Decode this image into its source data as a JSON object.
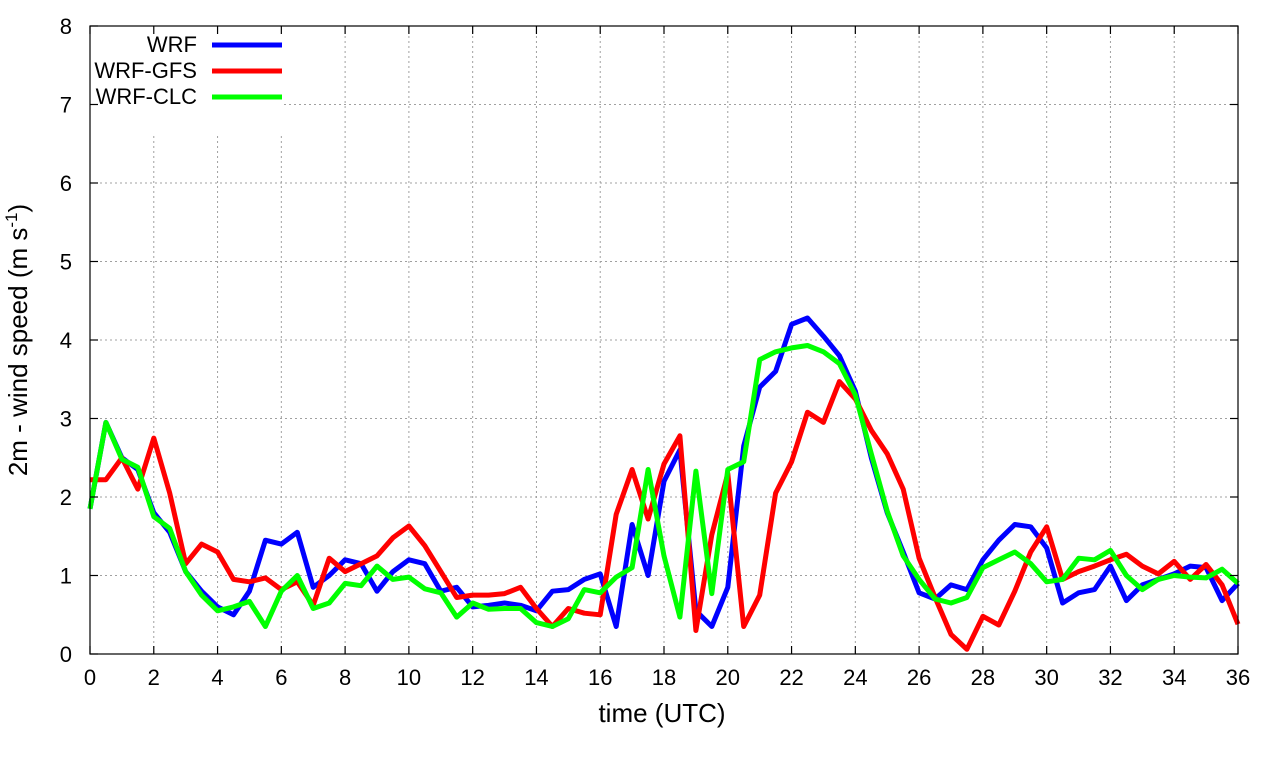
{
  "chart_data": {
    "type": "line",
    "xlabel": "time (UTC)",
    "ylabel_main": "2m - wind speed  (m s",
    "ylabel_exp": "-1",
    "ylabel_close": ")",
    "xlim": [
      0,
      36
    ],
    "ylim": [
      0,
      8
    ],
    "xticks": [
      0,
      2,
      4,
      6,
      8,
      10,
      12,
      14,
      16,
      18,
      20,
      22,
      24,
      26,
      28,
      30,
      32,
      34,
      36
    ],
    "yticks": [
      0,
      1,
      2,
      3,
      4,
      5,
      6,
      7,
      8
    ],
    "grid": true,
    "legend_position": "top-left",
    "series": [
      {
        "name": "WRF",
        "color": "#0000ff",
        "x": [
          0,
          0.5,
          1,
          1.5,
          2,
          2.5,
          3,
          3.5,
          4,
          4.5,
          5,
          5.5,
          6,
          6.5,
          7,
          7.5,
          8,
          8.5,
          9,
          9.5,
          10,
          10.5,
          11,
          11.5,
          12,
          12.5,
          13,
          13.5,
          14,
          14.5,
          15,
          15.5,
          16,
          16.5,
          17,
          17.5,
          18,
          18.5,
          19,
          19.5,
          20,
          20.5,
          21,
          21.5,
          22,
          22.5,
          23,
          23.5,
          24,
          24.5,
          25,
          25.5,
          26,
          26.5,
          27,
          27.5,
          28,
          28.5,
          29,
          29.5,
          30,
          30.5,
          31,
          31.5,
          32,
          32.5,
          33,
          33.5,
          34,
          34.5,
          35,
          35.5,
          36
        ],
        "values": [
          1.85,
          2.95,
          2.5,
          2.35,
          1.8,
          1.55,
          1.05,
          0.8,
          0.6,
          0.5,
          0.8,
          1.45,
          1.4,
          1.55,
          0.85,
          1.0,
          1.2,
          1.15,
          0.8,
          1.05,
          1.2,
          1.15,
          0.8,
          0.85,
          0.6,
          0.62,
          0.65,
          0.62,
          0.55,
          0.8,
          0.82,
          0.95,
          1.02,
          0.35,
          1.65,
          1.0,
          2.2,
          2.6,
          0.55,
          0.35,
          0.85,
          2.65,
          3.4,
          3.6,
          4.2,
          4.28,
          4.05,
          3.8,
          3.35,
          2.5,
          1.8,
          1.3,
          0.78,
          0.7,
          0.88,
          0.82,
          1.2,
          1.45,
          1.65,
          1.62,
          1.35,
          0.65,
          0.78,
          0.82,
          1.12,
          0.68,
          0.88,
          0.95,
          1.02,
          1.12,
          1.1,
          0.68,
          0.9
        ]
      },
      {
        "name": "WRF-GFS",
        "color": "#ff0000",
        "x": [
          0,
          0.5,
          1,
          1.5,
          2,
          2.5,
          3,
          3.5,
          4,
          4.5,
          5,
          5.5,
          6,
          6.5,
          7,
          7.5,
          8,
          8.5,
          9,
          9.5,
          10,
          10.5,
          11,
          11.5,
          12,
          12.5,
          13,
          13.5,
          14,
          14.5,
          15,
          15.5,
          16,
          16.5,
          17,
          17.5,
          18,
          18.5,
          19,
          19.5,
          20,
          20.5,
          21,
          21.5,
          22,
          22.5,
          23,
          23.5,
          24,
          24.5,
          25,
          25.5,
          26,
          26.5,
          27,
          27.5,
          28,
          28.5,
          29,
          29.5,
          30,
          30.5,
          31,
          31.5,
          32,
          32.5,
          33,
          33.5,
          34,
          34.5,
          35,
          35.5,
          36
        ],
        "values": [
          2.22,
          2.22,
          2.5,
          2.1,
          2.75,
          2.05,
          1.15,
          1.4,
          1.3,
          0.95,
          0.92,
          0.97,
          0.82,
          0.92,
          0.62,
          1.22,
          1.05,
          1.15,
          1.25,
          1.48,
          1.63,
          1.38,
          1.05,
          0.72,
          0.75,
          0.75,
          0.77,
          0.85,
          0.58,
          0.35,
          0.58,
          0.52,
          0.5,
          1.78,
          2.35,
          1.72,
          2.42,
          2.78,
          0.3,
          1.52,
          2.3,
          0.35,
          0.75,
          2.05,
          2.45,
          3.08,
          2.95,
          3.47,
          3.25,
          2.85,
          2.55,
          2.1,
          1.22,
          0.72,
          0.25,
          0.06,
          0.48,
          0.37,
          0.8,
          1.3,
          1.62,
          0.95,
          1.05,
          1.12,
          1.2,
          1.27,
          1.12,
          1.02,
          1.18,
          0.95,
          1.14,
          0.88,
          0.38
        ]
      },
      {
        "name": "WRF-CLC",
        "color": "#00ff00",
        "x": [
          0,
          0.5,
          1,
          1.5,
          2,
          2.5,
          3,
          3.5,
          4,
          4.5,
          5,
          5.5,
          6,
          6.5,
          7,
          7.5,
          8,
          8.5,
          9,
          9.5,
          10,
          10.5,
          11,
          11.5,
          12,
          12.5,
          13,
          13.5,
          14,
          14.5,
          15,
          15.5,
          16,
          16.5,
          17,
          17.5,
          18,
          18.5,
          19,
          19.5,
          20,
          20.5,
          21,
          21.5,
          22,
          22.5,
          23,
          23.5,
          24,
          24.5,
          25,
          25.5,
          26,
          26.5,
          27,
          27.5,
          28,
          28.5,
          29,
          29.5,
          30,
          30.5,
          31,
          31.5,
          32,
          32.5,
          33,
          33.5,
          34,
          34.5,
          35,
          35.5,
          36
        ],
        "values": [
          1.85,
          2.95,
          2.48,
          2.38,
          1.75,
          1.6,
          1.05,
          0.75,
          0.55,
          0.6,
          0.67,
          0.35,
          0.8,
          1.0,
          0.58,
          0.65,
          0.9,
          0.87,
          1.12,
          0.95,
          0.98,
          0.83,
          0.78,
          0.47,
          0.65,
          0.57,
          0.58,
          0.58,
          0.4,
          0.35,
          0.45,
          0.82,
          0.78,
          0.98,
          1.1,
          2.35,
          1.25,
          0.47,
          2.33,
          0.77,
          2.35,
          2.45,
          3.75,
          3.85,
          3.9,
          3.93,
          3.85,
          3.7,
          3.3,
          2.55,
          1.82,
          1.25,
          0.95,
          0.7,
          0.65,
          0.72,
          1.1,
          1.2,
          1.3,
          1.15,
          0.92,
          0.95,
          1.22,
          1.2,
          1.32,
          1.0,
          0.82,
          0.95,
          1.0,
          0.98,
          0.97,
          1.08,
          0.9
        ]
      }
    ]
  }
}
